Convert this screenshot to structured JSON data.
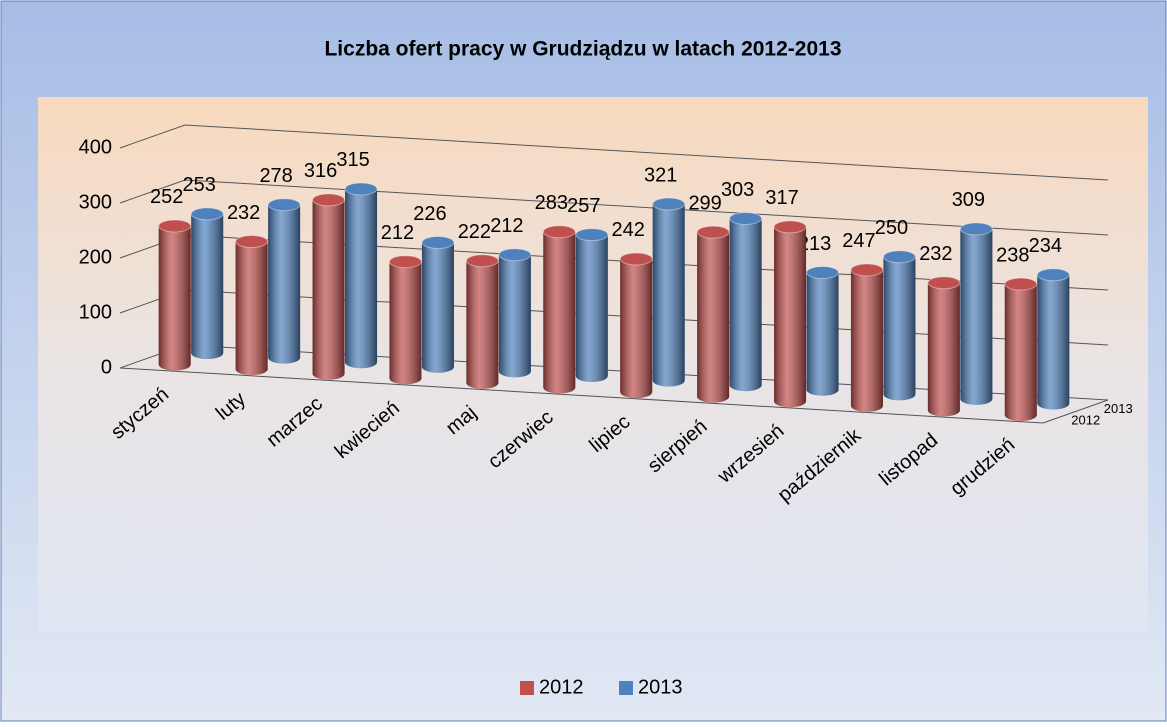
{
  "chart_data": {
    "type": "bar",
    "title": "Liczba ofert pracy w Grudziądzu w latach 2012-2013",
    "categories": [
      "styczeń",
      "luty",
      "marzec",
      "kwiecień",
      "maj",
      "czerwiec",
      "lipiec",
      "sierpień",
      "wrzesień",
      "październik",
      "listopad",
      "grudzień"
    ],
    "series": [
      {
        "name": "2012",
        "color": "#c0504d",
        "values": [
          252,
          232,
          316,
          212,
          222,
          283,
          242,
          299,
          317,
          247,
          232,
          238
        ]
      },
      {
        "name": "2013",
        "color": "#4f81bd",
        "values": [
          253,
          278,
          315,
          226,
          212,
          257,
          321,
          303,
          213,
          250,
          309,
          234
        ]
      }
    ],
    "ylim": [
      0,
      400
    ],
    "yticks": [
      0,
      100,
      200,
      300,
      400
    ],
    "grid": true,
    "legend": "bottom"
  }
}
